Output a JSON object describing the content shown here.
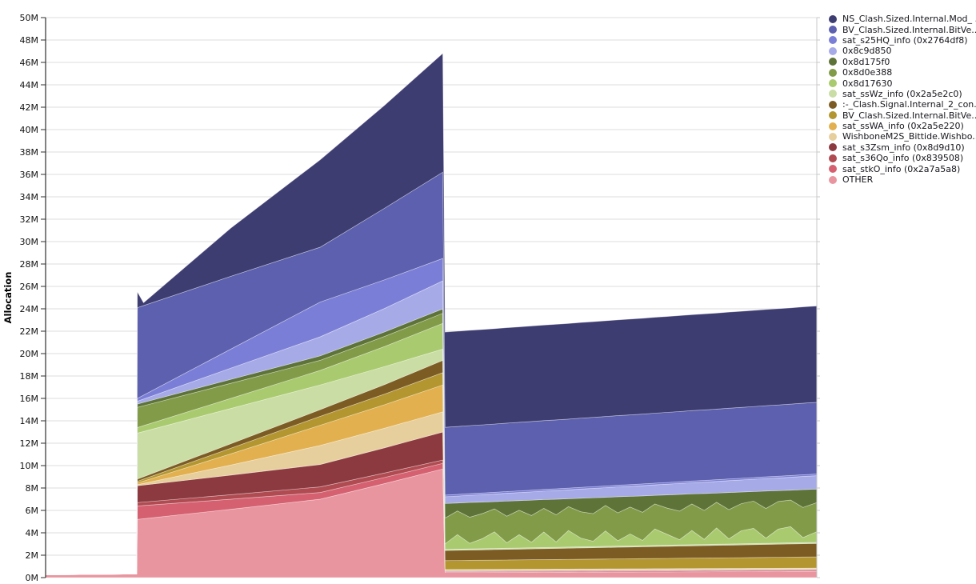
{
  "chart_data": {
    "type": "area",
    "variant": "stacked-area",
    "title": "",
    "xlabel": "",
    "ylabel": "Allocation",
    "unit": "M",
    "ylim": [
      0,
      50
    ],
    "ytick_values": [
      0,
      2,
      4,
      6,
      8,
      10,
      12,
      14,
      16,
      18,
      20,
      22,
      24,
      26,
      28,
      30,
      32,
      34,
      36,
      38,
      40,
      42,
      44,
      46,
      48,
      50
    ],
    "ytick_labels": [
      "0M",
      "2M",
      "4M",
      "6M",
      "8M",
      "10M",
      "12M",
      "14M",
      "16M",
      "18M",
      "20M",
      "22M",
      "24M",
      "26M",
      "28M",
      "30M",
      "32M",
      "34M",
      "36M",
      "38M",
      "40M",
      "42M",
      "44M",
      "46M",
      "48M",
      "50M"
    ],
    "x_range": [
      0,
      1
    ],
    "grid": true,
    "legend_position": "right",
    "series_order": "bottom-to-top",
    "series_unit_note": "values are band thickness in millions (M), stacked bottom-to-top",
    "series": [
      {
        "name": "OTHER",
        "color": "#e8959f",
        "points": [
          [
            0,
            0.25
          ],
          [
            0.115,
            0.32
          ],
          [
            0.118,
            0.32
          ],
          [
            0.119,
            5.2
          ],
          [
            0.24,
            6.1
          ],
          [
            0.356,
            7.0
          ],
          [
            0.44,
            8.4
          ],
          [
            0.515,
            9.7
          ],
          [
            0.518,
            0.45
          ],
          [
            1,
            0.55
          ]
        ]
      },
      {
        "name": "sat_stkO_info (0x2a7a5a8)",
        "color": "#d56070",
        "points": [
          [
            0,
            0
          ],
          [
            0.118,
            0
          ],
          [
            0.119,
            1.2
          ],
          [
            0.24,
            0.9
          ],
          [
            0.356,
            0.6
          ],
          [
            0.44,
            0.55
          ],
          [
            0.515,
            0.5
          ],
          [
            0.518,
            0.07
          ],
          [
            1,
            0.1
          ]
        ]
      },
      {
        "name": "sat_s36Qo_info (0x839508)",
        "color": "#b04b51",
        "points": [
          [
            0,
            0
          ],
          [
            0.118,
            0
          ],
          [
            0.119,
            0.3
          ],
          [
            0.24,
            0.4
          ],
          [
            0.356,
            0.5
          ],
          [
            0.44,
            0.4
          ],
          [
            0.515,
            0.3
          ],
          [
            0.518,
            0.05
          ],
          [
            1,
            0.05
          ]
        ]
      },
      {
        "name": "sat_s3Zsm_info (0x8d9d10)",
        "color": "#8c3a40",
        "points": [
          [
            0,
            0
          ],
          [
            0.118,
            0
          ],
          [
            0.119,
            1.5
          ],
          [
            0.24,
            1.75
          ],
          [
            0.356,
            2.0
          ],
          [
            0.44,
            2.25
          ],
          [
            0.515,
            2.5
          ],
          [
            0.518,
            0.05
          ],
          [
            1,
            0.05
          ]
        ]
      },
      {
        "name": "WishboneM2S_Bittide.Wishbo...",
        "color": "#e7cf9d",
        "points": [
          [
            0,
            0
          ],
          [
            0.118,
            0
          ],
          [
            0.119,
            0.1
          ],
          [
            0.24,
            0.9
          ],
          [
            0.356,
            1.7
          ],
          [
            0.44,
            1.75
          ],
          [
            0.515,
            1.8
          ],
          [
            0.518,
            0.05
          ],
          [
            1,
            0.05
          ]
        ]
      },
      {
        "name": "sat_ssWA_info (0x2a5e220)",
        "color": "#e2b04e",
        "points": [
          [
            0,
            0
          ],
          [
            0.118,
            0
          ],
          [
            0.119,
            0.15
          ],
          [
            0.24,
            1.0
          ],
          [
            0.356,
            1.8
          ],
          [
            0.44,
            2.1
          ],
          [
            0.515,
            2.4
          ],
          [
            0.518,
            0.05
          ],
          [
            1,
            0.05
          ]
        ]
      },
      {
        "name": "BV_Clash.Sized.Internal.BitVe... (2)",
        "color": "#b3962f",
        "points": [
          [
            0,
            0
          ],
          [
            0.118,
            0
          ],
          [
            0.119,
            0.15
          ],
          [
            0.24,
            0.5
          ],
          [
            0.356,
            0.8
          ],
          [
            0.44,
            0.95
          ],
          [
            0.515,
            1.1
          ],
          [
            0.518,
            0.8
          ],
          [
            1,
            1.0
          ]
        ]
      },
      {
        "name": ":-_Clash.Signal.Internal_2_con...",
        "color": "#7d5c24",
        "points": [
          [
            0,
            0
          ],
          [
            0.118,
            0
          ],
          [
            0.119,
            0.2
          ],
          [
            0.24,
            0.4
          ],
          [
            0.356,
            0.6
          ],
          [
            0.44,
            0.85
          ],
          [
            0.515,
            1.1
          ],
          [
            0.518,
            0.9
          ],
          [
            1,
            1.2
          ]
        ]
      },
      {
        "name": "sat_ssWz_info (0x2a5e2c0)",
        "color": "#c9dda4",
        "points": [
          [
            0,
            0
          ],
          [
            0.118,
            0
          ],
          [
            0.119,
            4.1
          ],
          [
            0.24,
            3.15
          ],
          [
            0.356,
            2.2
          ],
          [
            0.44,
            1.6
          ],
          [
            0.515,
            1.0
          ],
          [
            0.518,
            0.1
          ],
          [
            1,
            0.1
          ]
        ]
      },
      {
        "name": "0x8d17630",
        "color": "#a9ca6e",
        "points": [
          [
            0,
            0
          ],
          [
            0.118,
            0
          ],
          [
            0.119,
            0.5
          ],
          [
            0.24,
            0.9
          ],
          [
            0.356,
            1.3
          ],
          [
            0.44,
            1.8
          ],
          [
            0.515,
            2.3
          ],
          [
            0.518,
            0.5
          ],
          [
            0.534,
            1.3
          ],
          [
            0.55,
            0.5
          ],
          [
            0.566,
            0.89
          ],
          [
            0.582,
            1.49
          ],
          [
            0.598,
            0.49
          ],
          [
            0.614,
            1.19
          ],
          [
            0.63,
            0.49
          ],
          [
            0.646,
            1.39
          ],
          [
            0.662,
            0.48
          ],
          [
            0.678,
            1.48
          ],
          [
            0.694,
            0.78
          ],
          [
            0.71,
            0.48
          ],
          [
            0.726,
            1.38
          ],
          [
            0.742,
            0.48
          ],
          [
            0.758,
            1.07
          ],
          [
            0.774,
            0.47
          ],
          [
            0.79,
            1.47
          ],
          [
            0.806,
            0.97
          ],
          [
            0.822,
            0.47
          ],
          [
            0.838,
            1.27
          ],
          [
            0.854,
            0.46
          ],
          [
            0.87,
            1.46
          ],
          [
            0.886,
            0.46
          ],
          [
            0.902,
            1.16
          ],
          [
            0.918,
            1.36
          ],
          [
            0.934,
            0.46
          ],
          [
            0.95,
            1.25
          ],
          [
            0.966,
            1.45
          ],
          [
            0.982,
            0.45
          ],
          [
            1,
            0.95
          ]
        ]
      },
      {
        "name": "0x8d0e388",
        "color": "#819b48",
        "points": [
          [
            0,
            0
          ],
          [
            0.118,
            0
          ],
          [
            0.119,
            1.8
          ],
          [
            0.24,
            1.35
          ],
          [
            0.356,
            0.9
          ],
          [
            0.44,
            0.9
          ],
          [
            0.515,
            0.9
          ],
          [
            0.518,
            2.3
          ],
          [
            0.534,
            2.11
          ],
          [
            0.55,
            2.33
          ],
          [
            0.566,
            2.24
          ],
          [
            0.582,
            2.05
          ],
          [
            0.598,
            2.37
          ],
          [
            0.614,
            2.18
          ],
          [
            0.63,
            2.39
          ],
          [
            0.646,
            2.11
          ],
          [
            0.662,
            2.42
          ],
          [
            0.678,
            2.13
          ],
          [
            0.694,
            2.35
          ],
          [
            0.71,
            2.46
          ],
          [
            0.726,
            2.27
          ],
          [
            0.742,
            2.49
          ],
          [
            0.758,
            2.4
          ],
          [
            0.774,
            2.51
          ],
          [
            0.79,
            2.23
          ],
          [
            0.806,
            2.34
          ],
          [
            0.822,
            2.55
          ],
          [
            0.838,
            2.37
          ],
          [
            0.854,
            2.58
          ],
          [
            0.87,
            2.29
          ],
          [
            0.886,
            2.61
          ],
          [
            0.902,
            2.42
          ],
          [
            0.918,
            2.43
          ],
          [
            0.934,
            2.65
          ],
          [
            0.95,
            2.46
          ],
          [
            0.966,
            2.37
          ],
          [
            0.982,
            2.69
          ],
          [
            1,
            2.6
          ]
        ]
      },
      {
        "name": "0x8d175f0",
        "color": "#5e7338",
        "points": [
          [
            0,
            0
          ],
          [
            0.118,
            0
          ],
          [
            0.119,
            0.3
          ],
          [
            0.24,
            0.35
          ],
          [
            0.356,
            0.4
          ],
          [
            0.44,
            0.4
          ],
          [
            0.515,
            0.4
          ],
          [
            0.518,
            1.3
          ],
          [
            0.534,
            0.71
          ],
          [
            0.55,
            1.32
          ],
          [
            0.566,
            1.03
          ],
          [
            0.582,
            0.64
          ],
          [
            0.598,
            1.35
          ],
          [
            0.614,
            0.86
          ],
          [
            0.63,
            1.37
          ],
          [
            0.646,
            0.78
          ],
          [
            0.662,
            1.39
          ],
          [
            0.678,
            0.7
          ],
          [
            0.694,
            1.21
          ],
          [
            0.71,
            1.42
          ],
          [
            0.726,
            0.73
          ],
          [
            0.742,
            1.44
          ],
          [
            0.758,
            0.95
          ],
          [
            0.774,
            1.46
          ],
          [
            0.79,
            0.77
          ],
          [
            0.806,
            1.18
          ],
          [
            0.822,
            1.49
          ],
          [
            0.838,
            0.9
          ],
          [
            0.854,
            1.51
          ],
          [
            0.87,
            0.82
          ],
          [
            0.886,
            1.53
          ],
          [
            0.902,
            1.04
          ],
          [
            0.918,
            0.85
          ],
          [
            0.934,
            1.56
          ],
          [
            0.95,
            0.97
          ],
          [
            0.966,
            0.88
          ],
          [
            0.982,
            1.59
          ],
          [
            1,
            1.2
          ]
        ]
      },
      {
        "name": "0x8c9d850",
        "color": "#a6abe8",
        "points": [
          [
            0,
            0
          ],
          [
            0.118,
            0
          ],
          [
            0.119,
            0.25
          ],
          [
            0.24,
            1.0
          ],
          [
            0.356,
            1.7
          ],
          [
            0.44,
            2.1
          ],
          [
            0.515,
            2.5
          ],
          [
            0.518,
            0.6
          ],
          [
            1,
            1.2
          ]
        ]
      },
      {
        "name": "sat_s25HQ_info (0x2764df8)",
        "color": "#7b7ed6",
        "points": [
          [
            0,
            0
          ],
          [
            0.118,
            0
          ],
          [
            0.119,
            0.25
          ],
          [
            0.24,
            1.7
          ],
          [
            0.356,
            3.1
          ],
          [
            0.44,
            2.55
          ],
          [
            0.515,
            2.0
          ],
          [
            0.518,
            0.15
          ],
          [
            1,
            0.15
          ]
        ]
      },
      {
        "name": "BV_Clash.Sized.Internal.BitVe...",
        "color": "#5c60ae",
        "points": [
          [
            0,
            0
          ],
          [
            0.118,
            0
          ],
          [
            0.119,
            8.1
          ],
          [
            0.24,
            6.5
          ],
          [
            0.356,
            4.9
          ],
          [
            0.44,
            6.4
          ],
          [
            0.515,
            7.7
          ],
          [
            0.518,
            6.05
          ],
          [
            1,
            6.4
          ]
        ]
      },
      {
        "name": "NS_Clash.Sized.Internal.Mod_ ...",
        "color": "#3e3d72",
        "points": [
          [
            0,
            0
          ],
          [
            0.118,
            0
          ],
          [
            0.119,
            1.4
          ],
          [
            0.127,
            0.25
          ],
          [
            0.24,
            4.3
          ],
          [
            0.356,
            7.8
          ],
          [
            0.44,
            9.2
          ],
          [
            0.515,
            10.6
          ],
          [
            0.518,
            8.5
          ],
          [
            1,
            8.6
          ]
        ]
      }
    ],
    "legend": [
      {
        "label": "NS_Clash.Sized.Internal.Mod_ ...",
        "color": "#3e3d72"
      },
      {
        "label": "BV_Clash.Sized.Internal.BitVe...",
        "color": "#5c60ae"
      },
      {
        "label": "sat_s25HQ_info (0x2764df8)",
        "color": "#7b7ed6"
      },
      {
        "label": "0x8c9d850",
        "color": "#a6abe8"
      },
      {
        "label": "0x8d175f0",
        "color": "#5e7338"
      },
      {
        "label": "0x8d0e388",
        "color": "#819b48"
      },
      {
        "label": "0x8d17630",
        "color": "#a9ca6e"
      },
      {
        "label": "sat_ssWz_info (0x2a5e2c0)",
        "color": "#c9dda4"
      },
      {
        "label": ":-_Clash.Signal.Internal_2_con...",
        "color": "#7d5c24"
      },
      {
        "label": "BV_Clash.Sized.Internal.BitVe...",
        "color": "#b3962f"
      },
      {
        "label": "sat_ssWA_info (0x2a5e220)",
        "color": "#e2b04e"
      },
      {
        "label": "WishboneM2S_Bittide.Wishbo...",
        "color": "#e7cf9d"
      },
      {
        "label": "sat_s3Zsm_info (0x8d9d10)",
        "color": "#8c3a40"
      },
      {
        "label": "sat_s36Qo_info (0x839508)",
        "color": "#b04b51"
      },
      {
        "label": "sat_stkO_info (0x2a7a5a8)",
        "color": "#d56070"
      },
      {
        "label": "OTHER",
        "color": "#e8959f"
      }
    ],
    "axis_colors": {
      "left_axis": "#2f2f2f",
      "right_axis": "#c9c9c9",
      "gridline": "#dcdcdc",
      "tick_label": "#111111"
    }
  }
}
